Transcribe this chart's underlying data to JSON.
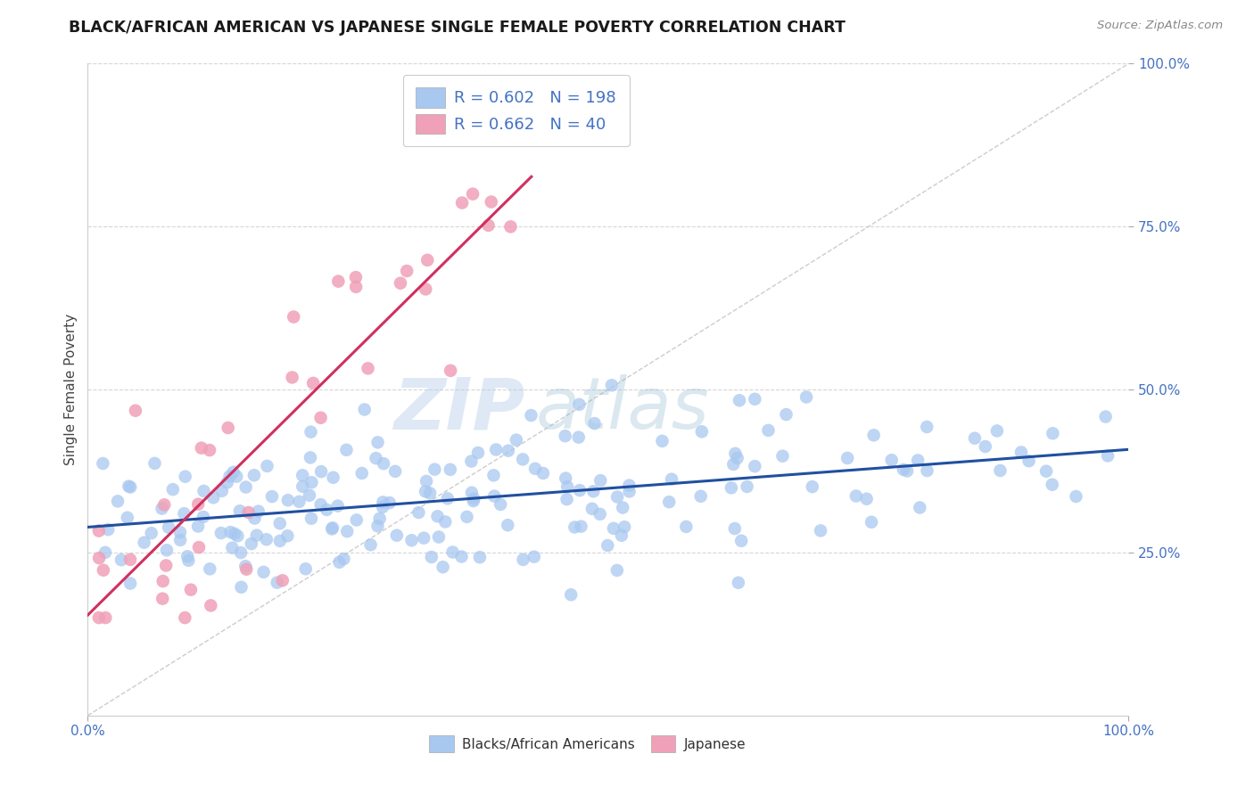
{
  "title": "BLACK/AFRICAN AMERICAN VS JAPANESE SINGLE FEMALE POVERTY CORRELATION CHART",
  "source_text": "Source: ZipAtlas.com",
  "ylabel": "Single Female Poverty",
  "xlabel": "",
  "watermark_zip": "ZIP",
  "watermark_atlas": "atlas",
  "blue_label": "Blacks/African Americans",
  "pink_label": "Japanese",
  "blue_R": 0.602,
  "blue_N": 198,
  "pink_R": 0.662,
  "pink_N": 40,
  "blue_color": "#A8C8F0",
  "pink_color": "#F0A0B8",
  "blue_line_color": "#2050A0",
  "pink_line_color": "#D03060",
  "legend_R_color": "#4472C4",
  "legend_N_color": "#E05050",
  "xlim": [
    0,
    1
  ],
  "ylim": [
    0,
    1
  ],
  "grid_color": "#CCCCCC",
  "background_color": "#FFFFFF",
  "blue_seed": 42,
  "pink_seed": 7,
  "blue_intercept": 0.285,
  "blue_slope": 0.115,
  "blue_noise": 0.055,
  "pink_intercept": 0.17,
  "pink_slope": 1.45,
  "pink_noise": 0.1
}
